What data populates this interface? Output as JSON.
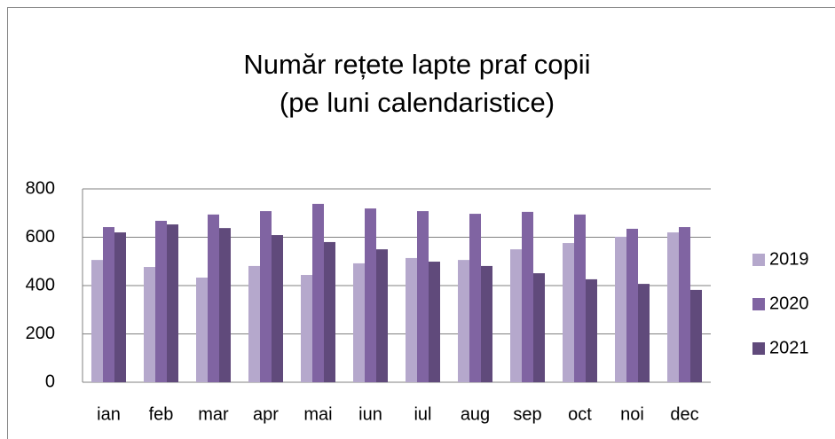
{
  "chart_data": {
    "type": "bar",
    "title": [
      "Număr rețete lapte praf copii",
      "(pe luni calendaristice)"
    ],
    "categories": [
      "ian",
      "feb",
      "mar",
      "apr",
      "mai",
      "iun",
      "iul",
      "aug",
      "sep",
      "oct",
      "noi",
      "dec"
    ],
    "series": [
      {
        "name": "2019",
        "color": "#b5a8cc",
        "values": [
          506,
          477,
          433,
          481,
          444,
          492,
          514,
          506,
          550,
          576,
          602,
          620
        ]
      },
      {
        "name": "2020",
        "color": "#8064a2",
        "values": [
          642,
          668,
          694,
          708,
          738,
          719,
          708,
          697,
          705,
          694,
          635,
          642
        ]
      },
      {
        "name": "2021",
        "color": "#604a7b",
        "values": [
          620,
          653,
          638,
          609,
          580,
          550,
          499,
          481,
          451,
          426,
          407,
          382
        ]
      }
    ],
    "ylim": [
      0,
      800
    ],
    "yticks": [
      0,
      200,
      400,
      600,
      800
    ],
    "grid": true,
    "legend": "right"
  }
}
